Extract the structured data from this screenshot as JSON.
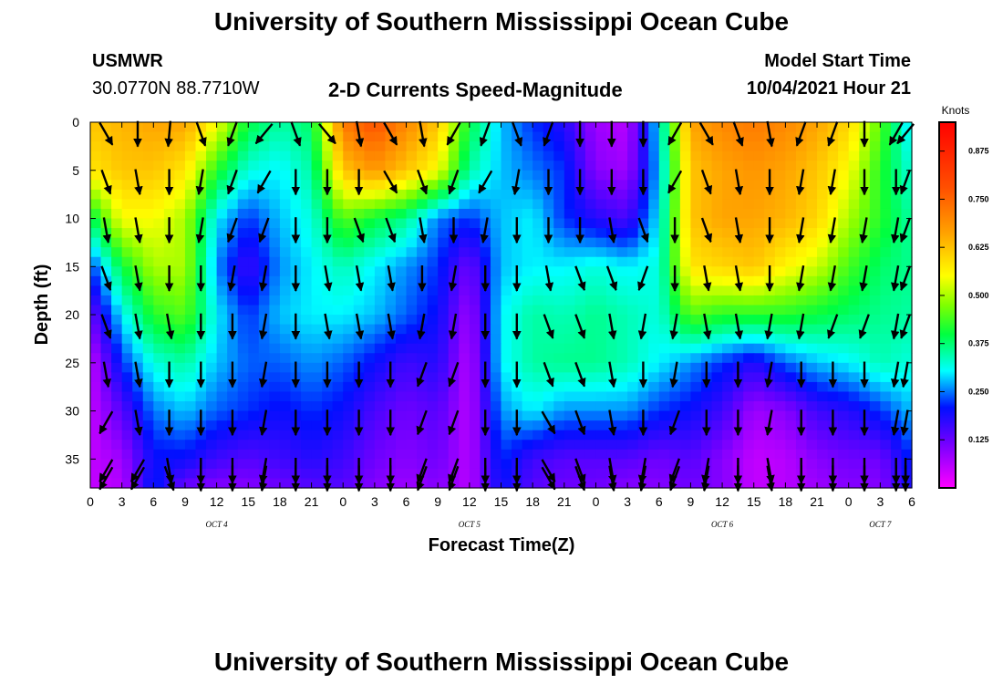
{
  "header": {
    "title_top": "University of Southern Mississippi Ocean Cube",
    "title_bottom": "University of Southern Mississippi Ocean Cube",
    "station": "USMWR",
    "location": "30.0770N  88.7710W",
    "plot_title": "2-D Currents Speed-Magnitude",
    "model_start_label": "Model Start Time",
    "model_start_value": "10/04/2021 Hour 21"
  },
  "chart_data": {
    "type": "heatmap",
    "title": "2-D Currents Speed-Magnitude",
    "xlabel": "Forecast Time(Z)",
    "ylabel": "Depth (ft)",
    "x_tick_labels": [
      "0",
      "3",
      "6",
      "9",
      "12",
      "15",
      "18",
      "21",
      "0",
      "3",
      "6",
      "9",
      "12",
      "15",
      "18",
      "21",
      "0",
      "3",
      "6",
      "9",
      "12",
      "15",
      "18",
      "21",
      "0",
      "3",
      "6"
    ],
    "y_tick_labels": [
      "0",
      "5",
      "10",
      "15",
      "20",
      "25",
      "30",
      "35"
    ],
    "day_labels": [
      "OCT 4",
      "OCT 5",
      "OCT 6",
      "OCT 7"
    ],
    "colorbar": {
      "unit": "Knots",
      "ticks": [
        "0.875",
        "0.750",
        "0.625",
        "0.500",
        "0.375",
        "0.250",
        "0.125"
      ],
      "range": [
        0,
        0.95
      ]
    },
    "xlim_hours": [
      0,
      78
    ],
    "ylim_ft": [
      0,
      38
    ],
    "depth_rows_ft": [
      0,
      5,
      10,
      15,
      20,
      25,
      30,
      35,
      38
    ],
    "time_cols_hours": [
      0,
      3,
      6,
      9,
      12,
      15,
      18,
      21,
      24,
      27,
      30,
      33,
      36,
      39,
      42,
      45,
      48,
      51,
      54,
      57,
      60,
      63,
      66,
      69,
      72,
      75,
      78
    ],
    "speed_knots": [
      [
        0.62,
        0.64,
        0.66,
        0.66,
        0.55,
        0.4,
        0.35,
        0.38,
        0.72,
        0.78,
        0.7,
        0.62,
        0.4,
        0.28,
        0.22,
        0.18,
        0.08,
        0.06,
        0.3,
        0.66,
        0.7,
        0.72,
        0.7,
        0.66,
        0.6,
        0.45,
        0.28
      ],
      [
        0.58,
        0.62,
        0.62,
        0.58,
        0.42,
        0.32,
        0.3,
        0.35,
        0.62,
        0.68,
        0.62,
        0.55,
        0.35,
        0.28,
        0.25,
        0.22,
        0.1,
        0.08,
        0.28,
        0.62,
        0.66,
        0.68,
        0.66,
        0.62,
        0.55,
        0.42,
        0.32
      ],
      [
        0.38,
        0.55,
        0.55,
        0.5,
        0.3,
        0.22,
        0.28,
        0.32,
        0.45,
        0.4,
        0.36,
        0.25,
        0.22,
        0.28,
        0.3,
        0.22,
        0.18,
        0.15,
        0.3,
        0.62,
        0.66,
        0.66,
        0.64,
        0.6,
        0.5,
        0.42,
        0.35
      ],
      [
        0.22,
        0.4,
        0.5,
        0.5,
        0.26,
        0.16,
        0.26,
        0.3,
        0.34,
        0.3,
        0.26,
        0.22,
        0.12,
        0.28,
        0.3,
        0.3,
        0.32,
        0.3,
        0.32,
        0.58,
        0.6,
        0.62,
        0.56,
        0.52,
        0.44,
        0.38,
        0.36
      ],
      [
        0.12,
        0.3,
        0.42,
        0.45,
        0.3,
        0.22,
        0.28,
        0.3,
        0.3,
        0.28,
        0.24,
        0.2,
        0.08,
        0.3,
        0.35,
        0.34,
        0.36,
        0.34,
        0.32,
        0.45,
        0.42,
        0.42,
        0.42,
        0.4,
        0.38,
        0.36,
        0.35
      ],
      [
        0.05,
        0.22,
        0.32,
        0.35,
        0.28,
        0.24,
        0.24,
        0.26,
        0.24,
        0.2,
        0.16,
        0.18,
        0.06,
        0.3,
        0.35,
        0.36,
        0.36,
        0.34,
        0.3,
        0.26,
        0.22,
        0.18,
        0.24,
        0.28,
        0.3,
        0.34,
        0.32
      ],
      [
        0.05,
        0.14,
        0.25,
        0.28,
        0.24,
        0.22,
        0.2,
        0.22,
        0.2,
        0.15,
        0.12,
        0.14,
        0.06,
        0.26,
        0.3,
        0.26,
        0.26,
        0.26,
        0.22,
        0.2,
        0.16,
        0.08,
        0.1,
        0.16,
        0.18,
        0.22,
        0.28
      ],
      [
        0.05,
        0.08,
        0.2,
        0.2,
        0.16,
        0.14,
        0.16,
        0.18,
        0.16,
        0.12,
        0.1,
        0.12,
        0.06,
        0.22,
        0.16,
        0.14,
        0.14,
        0.14,
        0.12,
        0.14,
        0.1,
        0.05,
        0.06,
        0.1,
        0.12,
        0.12,
        0.22
      ],
      [
        0.05,
        0.06,
        0.22,
        0.12,
        0.1,
        0.1,
        0.12,
        0.14,
        0.14,
        0.1,
        0.08,
        0.1,
        0.06,
        0.2,
        0.14,
        0.12,
        0.12,
        0.1,
        0.1,
        0.12,
        0.1,
        0.05,
        0.06,
        0.08,
        0.1,
        0.1,
        0.2
      ]
    ],
    "vector_angle_deg": [
      [
        30,
        0,
        -5,
        20,
        -20,
        -40,
        20,
        40,
        10,
        30,
        10,
        -30,
        -20,
        20,
        -20,
        0,
        0,
        0,
        -30,
        30,
        20,
        10,
        -20,
        -20,
        0,
        -30,
        -40
      ],
      [
        20,
        10,
        0,
        -10,
        -20,
        -30,
        0,
        0,
        0,
        30,
        20,
        -20,
        -30,
        -10,
        0,
        0,
        0,
        0,
        -30,
        20,
        10,
        0,
        -10,
        -10,
        0,
        0,
        -20
      ],
      [
        10,
        10,
        0,
        -10,
        -20,
        -20,
        0,
        0,
        20,
        20,
        10,
        0,
        -10,
        0,
        0,
        0,
        10,
        20,
        0,
        20,
        10,
        0,
        -10,
        -10,
        -10,
        -10,
        -20
      ],
      [
        20,
        10,
        0,
        0,
        -10,
        -10,
        0,
        10,
        10,
        10,
        0,
        -10,
        0,
        0,
        10,
        20,
        20,
        -20,
        0,
        10,
        10,
        0,
        -10,
        -10,
        -10,
        -10,
        -20
      ],
      [
        20,
        10,
        10,
        0,
        0,
        -10,
        0,
        10,
        10,
        10,
        -10,
        -10,
        0,
        0,
        20,
        20,
        10,
        -10,
        -10,
        10,
        10,
        -10,
        -10,
        -20,
        -20,
        -10,
        -20
      ],
      [
        10,
        10,
        0,
        0,
        0,
        -10,
        0,
        0,
        0,
        0,
        -20,
        -20,
        0,
        0,
        20,
        20,
        10,
        0,
        -10,
        0,
        0,
        -10,
        0,
        0,
        0,
        -10,
        -10
      ],
      [
        -30,
        10,
        0,
        0,
        0,
        -10,
        0,
        0,
        0,
        0,
        -20,
        -20,
        0,
        0,
        30,
        20,
        10,
        0,
        -20,
        0,
        0,
        -10,
        0,
        0,
        0,
        -10,
        -10
      ],
      [
        -30,
        -30,
        10,
        0,
        0,
        -10,
        0,
        0,
        0,
        0,
        -20,
        -20,
        0,
        0,
        30,
        20,
        10,
        -10,
        -20,
        -10,
        0,
        10,
        0,
        0,
        0,
        0,
        0
      ],
      [
        -30,
        -30,
        20,
        0,
        0,
        -10,
        0,
        0,
        0,
        0,
        -20,
        -20,
        0,
        0,
        30,
        20,
        10,
        -10,
        -20,
        -10,
        0,
        10,
        0,
        0,
        0,
        0,
        0
      ]
    ]
  }
}
